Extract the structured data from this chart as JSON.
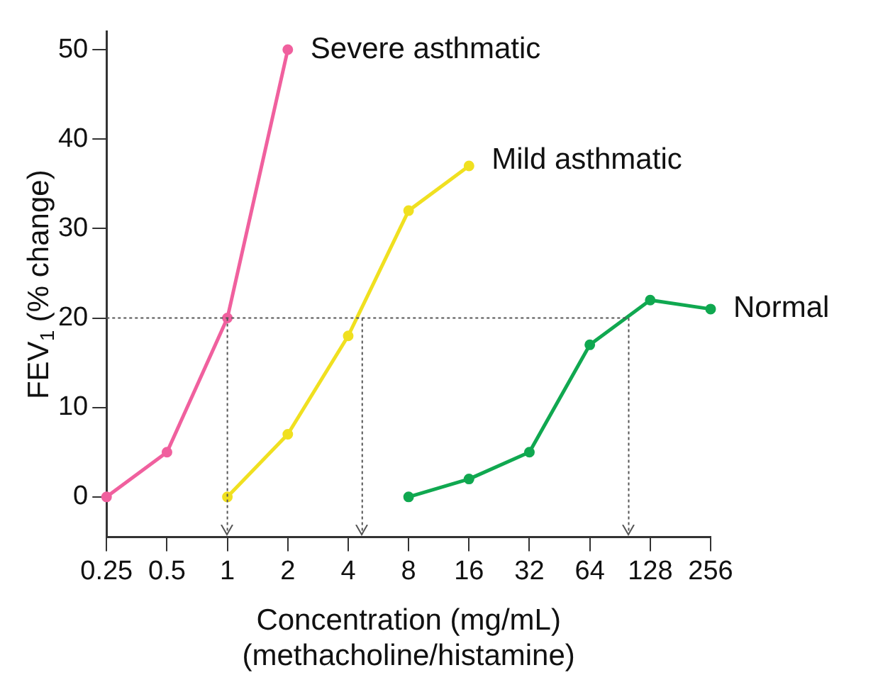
{
  "chart_data": {
    "type": "line",
    "xlabel": "Concentration (mg/mL)\n(methacholine/histamine)",
    "ylabel": "FEV$_{1}$ (% change)",
    "log": "x",
    "xlim": [
      0.25,
      256
    ],
    "xticks": [
      0.25,
      0.5,
      1,
      2,
      4,
      8,
      16,
      32,
      64,
      128,
      256
    ],
    "ylim": [
      -4.5,
      52
    ],
    "yticks": [
      0,
      10,
      20,
      30,
      40,
      50
    ],
    "grid": false,
    "legend": false,
    "marker": "circle",
    "line_style": "solid",
    "series": [
      {
        "name": "Severe asthmatic",
        "color": "#f0609e",
        "x": [
          0.25,
          0.5,
          1,
          2
        ],
        "values": [
          0,
          5,
          20,
          50
        ]
      },
      {
        "name": "Mild asthmatic",
        "color": "#f0e020",
        "x": [
          1,
          2,
          4,
          8,
          16
        ],
        "values": [
          0,
          7,
          18,
          32,
          37
        ]
      },
      {
        "name": "Normal",
        "color": "#10a850",
        "x": [
          8,
          16,
          32,
          64,
          128,
          256
        ],
        "values": [
          0,
          2,
          5,
          17,
          22,
          21
        ]
      }
    ],
    "ref_lines": [
      {
        "axis": "y",
        "value": 20,
        "line_style": "dotted",
        "color": "#555555"
      },
      {
        "axis": "x",
        "value": 1,
        "line_style": "dotted",
        "color": "#555555"
      },
      {
        "axis": "x",
        "value": 4.7,
        "line_style": "dotted",
        "color": "#555555"
      },
      {
        "axis": "x",
        "value": 100,
        "line_style": "dotted",
        "color": "#555555"
      }
    ]
  }
}
